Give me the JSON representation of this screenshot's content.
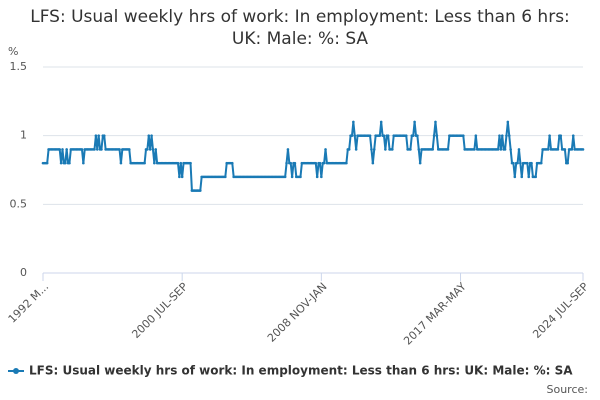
{
  "chart_data": {
    "type": "line",
    "title": "LFS: Usual weekly hrs of work: In employment: Less than 6 hrs: UK: Male: %: SA",
    "y_label": "%",
    "source": "Source:",
    "ylim": [
      0,
      1.5
    ],
    "yticks": [
      0,
      0.5,
      1,
      1.5
    ],
    "grid": true,
    "legend": "bottom",
    "categories": [
      "1992 M...",
      null,
      null,
      null,
      null,
      null,
      null,
      null,
      null,
      null,
      null,
      null,
      null,
      null,
      null,
      null,
      null,
      null,
      null,
      null,
      null,
      null,
      null,
      null,
      null,
      null,
      null,
      null,
      null,
      null,
      null,
      null,
      null,
      null,
      null,
      null,
      null,
      null,
      null,
      null,
      null,
      null,
      null,
      null,
      null,
      null,
      null,
      null,
      null,
      null,
      null,
      null,
      null,
      null,
      null,
      null,
      null,
      null,
      null,
      null,
      null,
      null,
      null,
      null,
      null,
      null,
      null,
      null,
      null,
      null,
      null,
      null,
      null,
      null,
      null,
      null,
      null,
      null,
      null,
      null,
      null,
      null,
      null,
      null,
      null,
      null,
      null,
      null,
      null,
      null,
      null,
      null,
      null,
      null,
      null,
      null,
      null,
      null,
      null,
      null,
      "2000 JUL-SEP",
      null,
      null,
      null,
      null,
      null,
      null,
      null,
      null,
      null,
      null,
      null,
      null,
      null,
      null,
      null,
      null,
      null,
      null,
      null,
      null,
      null,
      null,
      null,
      null,
      null,
      null,
      null,
      null,
      null,
      null,
      null,
      null,
      null,
      null,
      null,
      null,
      null,
      null,
      null,
      null,
      null,
      null,
      null,
      null,
      null,
      null,
      null,
      null,
      null,
      null,
      null,
      null,
      null,
      null,
      null,
      null,
      null,
      null,
      null,
      null,
      null,
      null,
      null,
      null,
      null,
      null,
      null,
      null,
      null,
      null,
      null,
      null,
      null,
      null,
      null,
      null,
      null,
      null,
      null,
      null,
      null,
      null,
      null,
      null,
      null,
      null,
      null,
      null,
      null,
      null,
      null,
      null,
      null,
      null,
      null,
      null,
      null,
      null,
      null,
      "2008 NOV-JAN",
      null,
      null,
      null,
      null,
      null,
      null,
      null,
      null,
      null,
      null,
      null,
      null,
      null,
      null,
      null,
      null,
      null,
      null,
      null,
      null,
      null,
      null,
      null,
      null,
      null,
      null,
      null,
      null,
      null,
      null,
      null,
      null,
      null,
      null,
      null,
      null,
      null,
      null,
      null,
      null,
      null,
      null,
      null,
      null,
      null,
      null,
      null,
      null,
      null,
      null,
      null,
      null,
      null,
      null,
      null,
      null,
      null,
      null,
      null,
      null,
      null,
      null,
      null,
      null,
      null,
      null,
      null,
      null,
      null,
      null,
      null,
      null,
      null,
      null,
      null,
      null,
      null,
      null,
      null,
      null,
      null,
      null,
      null,
      null,
      null,
      null,
      null,
      null,
      null,
      null,
      null,
      null,
      null,
      null,
      null,
      null,
      null,
      null,
      null,
      "2017 MAR-MAY",
      null,
      null,
      null,
      null,
      null,
      null,
      null,
      null,
      null,
      null,
      null,
      null,
      null,
      null,
      null,
      null,
      null,
      null,
      null,
      null,
      null,
      null,
      null,
      null,
      null,
      null,
      null,
      null,
      null,
      null,
      null,
      null,
      null,
      null,
      null,
      null,
      null,
      null,
      null,
      null,
      null,
      null,
      null,
      null,
      null,
      null,
      null,
      null,
      null,
      null,
      null,
      null,
      null,
      null,
      null,
      null,
      null,
      null,
      null,
      null,
      null,
      null,
      null,
      null,
      null,
      null,
      null,
      null,
      null,
      null,
      null,
      null,
      null,
      null,
      null,
      null,
      null,
      null,
      null,
      null,
      null,
      null,
      null,
      null,
      null,
      null,
      null,
      "2024 JUL-SEP"
    ],
    "series": [
      {
        "name": "LFS: Usual weekly hrs of work: In employment: Less than 6 hrs: UK: Male: %: SA",
        "color": "#1a7ab5",
        "values": [
          0.8,
          0.8,
          0.8,
          0.8,
          0.9,
          0.9,
          0.9,
          0.9,
          0.9,
          0.9,
          0.9,
          0.9,
          0.9,
          0.8,
          0.9,
          0.8,
          0.8,
          0.9,
          0.8,
          0.8,
          0.9,
          0.9,
          0.9,
          0.9,
          0.9,
          0.9,
          0.9,
          0.9,
          0.9,
          0.8,
          0.9,
          0.9,
          0.9,
          0.9,
          0.9,
          0.9,
          0.9,
          0.9,
          1,
          0.9,
          1,
          0.9,
          0.9,
          1,
          1,
          0.9,
          0.9,
          0.9,
          0.9,
          0.9,
          0.9,
          0.9,
          0.9,
          0.9,
          0.9,
          0.9,
          0.8,
          0.9,
          0.9,
          0.9,
          0.9,
          0.9,
          0.9,
          0.8,
          0.8,
          0.8,
          0.8,
          0.8,
          0.8,
          0.8,
          0.8,
          0.8,
          0.8,
          0.8,
          0.9,
          0.9,
          1,
          0.9,
          1,
          0.9,
          0.8,
          0.9,
          0.8,
          0.8,
          0.8,
          0.8,
          0.8,
          0.8,
          0.8,
          0.8,
          0.8,
          0.8,
          0.8,
          0.8,
          0.8,
          0.8,
          0.8,
          0.8,
          0.7,
          0.8,
          0.7,
          0.8,
          0.8,
          0.8,
          0.8,
          0.8,
          0.8,
          0.6,
          0.6,
          0.6,
          0.6,
          0.6,
          0.6,
          0.6,
          0.7,
          0.7,
          0.7,
          0.7,
          0.7,
          0.7,
          0.7,
          0.7,
          0.7,
          0.7,
          0.7,
          0.7,
          0.7,
          0.7,
          0.7,
          0.7,
          0.7,
          0.7,
          0.8,
          0.8,
          0.8,
          0.8,
          0.8,
          0.7,
          0.7,
          0.7,
          0.7,
          0.7,
          0.7,
          0.7,
          0.7,
          0.7,
          0.7,
          0.7,
          0.7,
          0.7,
          0.7,
          0.7,
          0.7,
          0.7,
          0.7,
          0.7,
          0.7,
          0.7,
          0.7,
          0.7,
          0.7,
          0.7,
          0.7,
          0.7,
          0.7,
          0.7,
          0.7,
          0.7,
          0.7,
          0.7,
          0.7,
          0.7,
          0.7,
          0.7,
          0.7,
          0.8,
          0.9,
          0.8,
          0.8,
          0.7,
          0.8,
          0.8,
          0.7,
          0.7,
          0.7,
          0.7,
          0.8,
          0.8,
          0.8,
          0.8,
          0.8,
          0.8,
          0.8,
          0.8,
          0.8,
          0.8,
          0.8,
          0.7,
          0.8,
          0.8,
          0.7,
          0.8,
          0.8,
          0.9,
          0.8,
          0.8,
          0.8,
          0.8,
          0.8,
          0.8,
          0.8,
          0.8,
          0.8,
          0.8,
          0.8,
          0.8,
          0.8,
          0.8,
          0.8,
          0.9,
          0.9,
          1,
          1,
          1.1,
          1,
          0.9,
          1,
          1,
          1,
          1,
          1,
          1,
          1,
          1,
          1,
          1,
          0.9,
          0.8,
          0.9,
          1,
          1,
          1,
          1,
          1.1,
          1,
          1,
          0.9,
          1,
          1,
          0.9,
          0.9,
          0.9,
          1,
          1,
          1,
          1,
          1,
          1,
          1,
          1,
          1,
          1,
          0.9,
          0.9,
          0.9,
          1,
          1,
          1.1,
          1,
          1,
          0.9,
          0.8,
          0.9,
          0.9,
          0.9,
          0.9,
          0.9,
          0.9,
          0.9,
          0.9,
          0.9,
          1,
          1.1,
          1,
          0.9,
          0.9,
          0.9,
          0.9,
          0.9,
          0.9,
          0.9,
          0.9,
          1,
          1,
          1,
          1,
          1,
          1,
          1,
          1,
          1,
          1,
          1,
          0.9,
          0.9,
          0.9,
          0.9,
          0.9,
          0.9,
          0.9,
          0.9,
          1,
          0.9,
          0.9,
          0.9,
          0.9,
          0.9,
          0.9,
          0.9,
          0.9,
          0.9,
          0.9,
          0.9,
          0.9,
          0.9,
          0.9,
          0.9,
          0.9,
          1,
          0.9,
          1,
          0.9,
          0.9,
          1,
          1.1,
          1,
          0.9,
          0.8,
          0.8,
          0.7,
          0.8,
          0.8,
          0.9,
          0.8,
          0.7,
          0.8,
          0.8,
          0.8,
          0.8,
          0.7,
          0.8,
          0.8,
          0.7,
          0.7,
          0.7,
          0.8,
          0.8,
          0.8,
          0.8,
          0.9,
          0.9,
          0.9,
          0.9,
          0.9,
          1,
          0.9,
          0.9,
          0.9,
          0.9,
          0.9,
          0.9,
          1,
          1,
          0.9,
          0.9,
          0.9,
          0.8,
          0.8,
          0.9,
          0.9,
          0.9,
          1,
          0.9,
          0.9,
          0.9,
          0.9,
          0.9,
          0.9,
          0.9
        ]
      }
    ]
  }
}
